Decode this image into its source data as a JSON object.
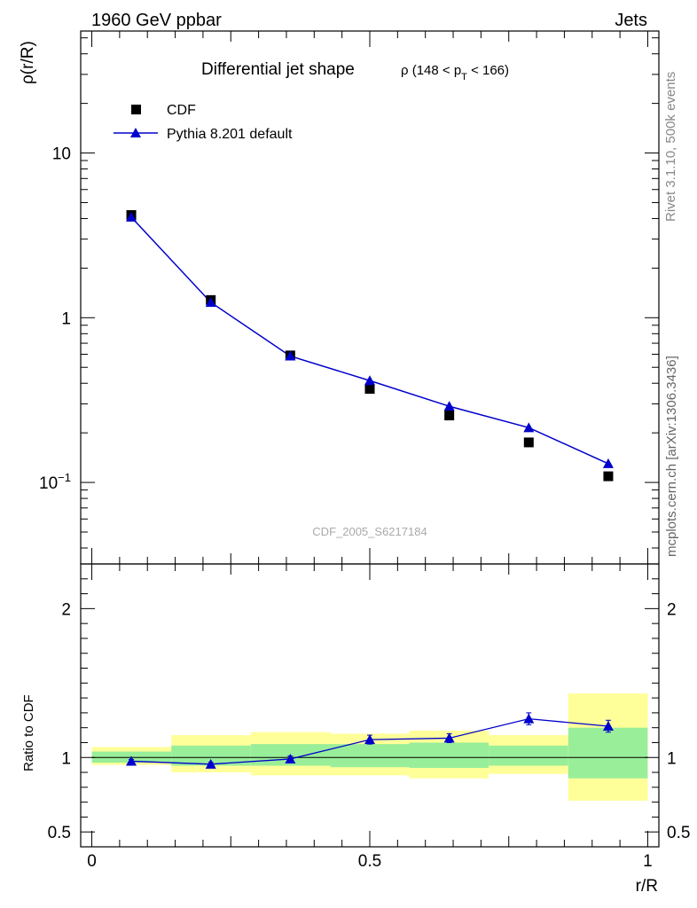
{
  "header": {
    "left": "1960 GeV ppbar",
    "right": "Jets"
  },
  "side_labels": {
    "rivet": "Rivet 3.1.10,  500k events",
    "mcplots": "mcplots.cern.ch [arXiv:1306.3436]"
  },
  "colors": {
    "mc": "#0000cc",
    "data": "#000000",
    "band_outer": "#ffff99",
    "band_inner": "#99ee99"
  },
  "chart_data": [
    {
      "type": "scatter",
      "title_main": "Differential jet shape",
      "title_sub_prefix": "ρ (148 < p",
      "title_sub_index": "T",
      "title_sub_suffix": " < 166)",
      "ylabel": "ρ(r/R)",
      "yscale": "log",
      "ylim": [
        0.032,
        55
      ],
      "xlim": [
        -0.02,
        1.02
      ],
      "yticks": [
        {
          "v": 0.1,
          "base": "10",
          "exp": "−1"
        },
        {
          "v": 1,
          "label": "1"
        },
        {
          "v": 10,
          "label": "10"
        }
      ],
      "watermark": "CDF_2005_S6217184",
      "legend": [
        "CDF",
        "Pythia 8.201 default"
      ],
      "x": [
        0.071,
        0.214,
        0.357,
        0.5,
        0.643,
        0.786,
        0.929
      ],
      "series": [
        {
          "name": "CDF",
          "values": [
            4.2,
            1.28,
            0.59,
            0.37,
            0.255,
            0.175,
            0.109
          ]
        },
        {
          "name": "Pythia 8.201 default",
          "values": [
            4.08,
            1.24,
            0.585,
            0.415,
            0.29,
            0.215,
            0.13
          ]
        }
      ]
    },
    {
      "type": "line",
      "ylabel": "Ratio to CDF",
      "xlabel": "r/R",
      "ylim": [
        0.4,
        2.3
      ],
      "xlim": [
        -0.02,
        1.02
      ],
      "yticks": [
        {
          "v": 0.5,
          "label": "0.5"
        },
        {
          "v": 1,
          "label": "1"
        },
        {
          "v": 2,
          "label": "2"
        }
      ],
      "xticks": [
        {
          "v": 0,
          "label": "0"
        },
        {
          "v": 0.5,
          "label": "0.5"
        },
        {
          "v": 1,
          "label": "1"
        }
      ],
      "x": [
        0.071,
        0.214,
        0.357,
        0.5,
        0.643,
        0.786,
        0.929
      ],
      "ratio": [
        0.975,
        0.955,
        0.99,
        1.12,
        1.13,
        1.26,
        1.21
      ],
      "ratio_err": [
        0.012,
        0.012,
        0.02,
        0.03,
        0.03,
        0.04,
        0.04
      ],
      "bands": [
        {
          "x0": 0.0,
          "x1": 0.143,
          "outer": [
            0.95,
            1.07
          ],
          "inner": [
            0.965,
            1.04
          ]
        },
        {
          "x0": 0.143,
          "x1": 0.286,
          "outer": [
            0.9,
            1.15
          ],
          "inner": [
            0.945,
            1.08
          ]
        },
        {
          "x0": 0.286,
          "x1": 0.429,
          "outer": [
            0.88,
            1.17
          ],
          "inner": [
            0.945,
            1.09
          ]
        },
        {
          "x0": 0.429,
          "x1": 0.571,
          "outer": [
            0.88,
            1.16
          ],
          "inner": [
            0.935,
            1.09
          ]
        },
        {
          "x0": 0.571,
          "x1": 0.714,
          "outer": [
            0.86,
            1.18
          ],
          "inner": [
            0.93,
            1.1
          ]
        },
        {
          "x0": 0.714,
          "x1": 0.857,
          "outer": [
            0.89,
            1.15
          ],
          "inner": [
            0.945,
            1.08
          ]
        },
        {
          "x0": 0.857,
          "x1": 1.0,
          "outer": [
            0.71,
            1.43
          ],
          "inner": [
            0.86,
            1.2
          ]
        }
      ]
    }
  ]
}
